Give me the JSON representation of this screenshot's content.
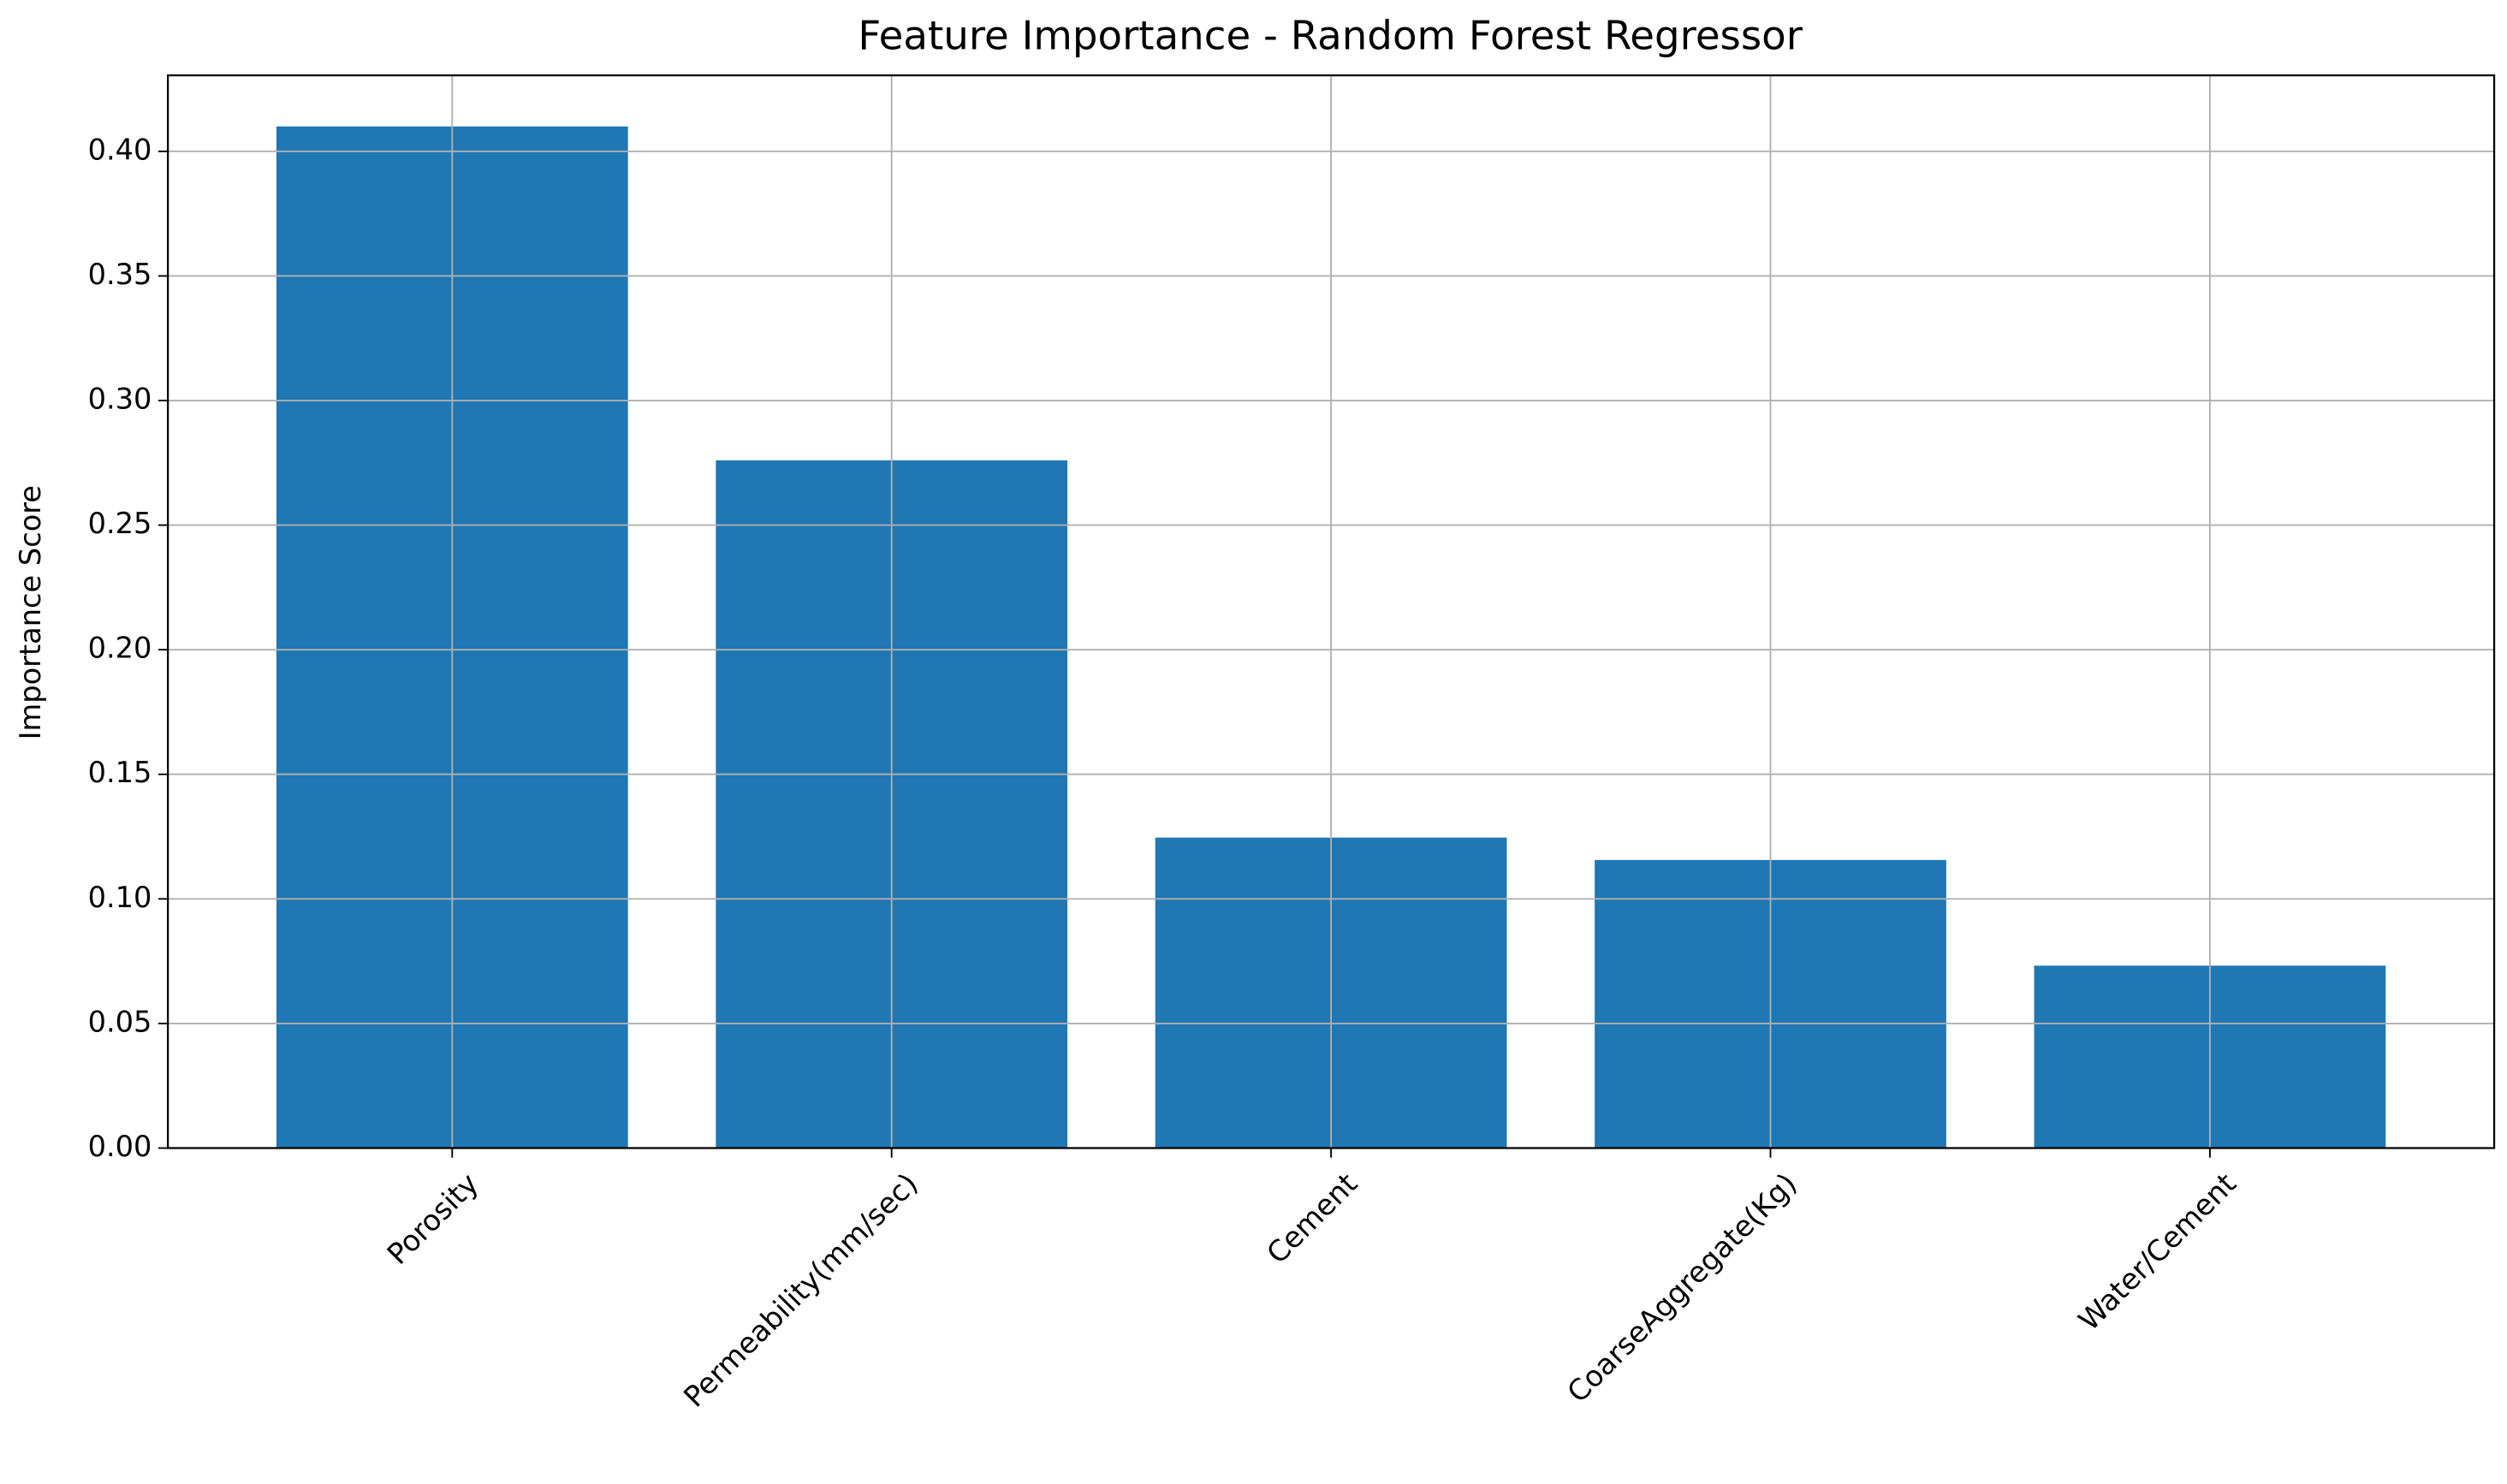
{
  "chart_data": {
    "type": "bar",
    "title": "Feature Importance - Random Forest Regressor",
    "ylabel": "Importance Score",
    "categories": [
      "Porosity",
      "Permeability(mm/sec)",
      "Cement",
      "CoarseAggregate(Kg)",
      "Water/Cement"
    ],
    "values": [
      0.41,
      0.276,
      0.1246,
      0.1156,
      0.0732
    ],
    "color": "#1f77b4",
    "ylim": [
      0,
      0.4305
    ],
    "yticks": [
      {
        "value": 0,
        "label": "0.00"
      },
      {
        "value": 0.05,
        "label": "0.05"
      },
      {
        "value": 0.1,
        "label": "0.10"
      },
      {
        "value": 0.15,
        "label": "0.15"
      },
      {
        "value": 0.2,
        "label": "0.20"
      },
      {
        "value": 0.25,
        "label": "0.25"
      },
      {
        "value": 0.3,
        "label": "0.30"
      },
      {
        "value": 0.35,
        "label": "0.35"
      },
      {
        "value": 0.4,
        "label": "0.40"
      }
    ],
    "grid": true
  }
}
